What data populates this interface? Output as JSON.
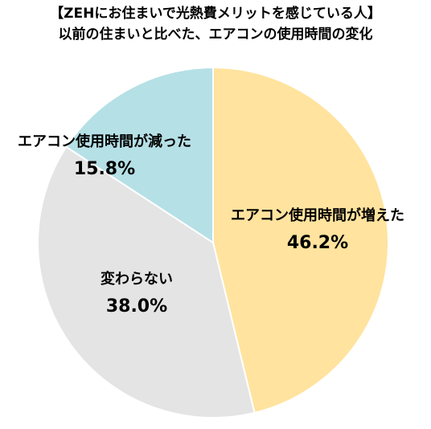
{
  "chart_data": {
    "type": "pie",
    "title_lines": [
      "【ZEHにお住まいで光熱費メリットを感じている人】",
      "以前の住まいと比べた、エアコンの使用時間の変化"
    ],
    "slices": [
      {
        "label": "エアコン使用時間が増えた",
        "value": 46.2,
        "value_label": "46.2%",
        "color": "#FFE39E"
      },
      {
        "label": "変わらない",
        "value": 38.0,
        "value_label": "38.0%",
        "color": "#E4E4E4"
      },
      {
        "label": "エアコン使用時間が減った",
        "value": 15.8,
        "value_label": "15.8%",
        "color": "#B5E0E6"
      }
    ],
    "start_angle_deg": 0,
    "direction": "clockwise",
    "slice_border_color": "#FFFFFF"
  }
}
